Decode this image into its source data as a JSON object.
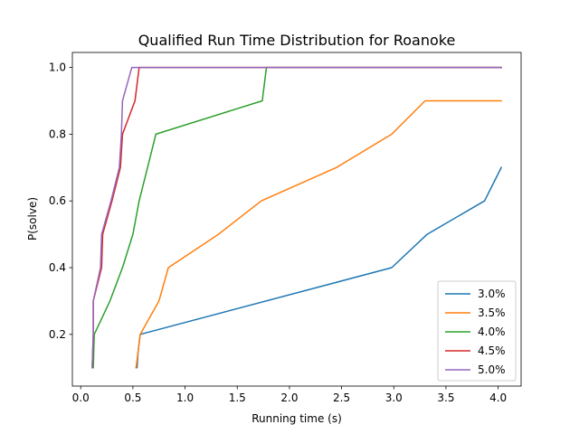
{
  "chart_data": {
    "type": "line",
    "title": "Qualified Run Time Distribution for Roanoke",
    "xlabel": "Running time (s)",
    "ylabel": "P(solve)",
    "xlim": [
      -0.08,
      4.22
    ],
    "ylim": [
      0.045,
      1.045
    ],
    "xticks": [
      0.0,
      0.5,
      1.0,
      1.5,
      2.0,
      2.5,
      3.0,
      3.5,
      4.0
    ],
    "xtick_labels": [
      "0.0",
      "0.5",
      "1.0",
      "1.5",
      "2.0",
      "2.5",
      "3.0",
      "3.5",
      "4.0"
    ],
    "yticks": [
      0.2,
      0.4,
      0.6,
      0.8,
      1.0
    ],
    "ytick_labels": [
      "0.2",
      "0.4",
      "0.6",
      "0.8",
      "1.0"
    ],
    "grid": false,
    "legend_position": "lower-right",
    "series": [
      {
        "name": "3.0%",
        "color": "#1f77b4",
        "points": [
          [
            0.53,
            0.1
          ],
          [
            0.54,
            0.1
          ],
          [
            0.55,
            0.15
          ],
          [
            0.57,
            0.2
          ],
          [
            2.98,
            0.4
          ],
          [
            3.32,
            0.5
          ],
          [
            3.87,
            0.6
          ],
          [
            4.03,
            0.7
          ]
        ]
      },
      {
        "name": "3.5%",
        "color": "#ff7f0e",
        "points": [
          [
            0.53,
            0.1
          ],
          [
            0.57,
            0.2
          ],
          [
            0.75,
            0.3
          ],
          [
            0.84,
            0.4
          ],
          [
            1.32,
            0.5
          ],
          [
            1.73,
            0.6
          ],
          [
            2.45,
            0.7
          ],
          [
            2.98,
            0.8
          ],
          [
            3.3,
            0.9
          ],
          [
            4.03,
            0.9
          ]
        ]
      },
      {
        "name": "4.0%",
        "color": "#2ca02c",
        "points": [
          [
            0.12,
            0.1
          ],
          [
            0.13,
            0.2
          ],
          [
            0.28,
            0.3
          ],
          [
            0.4,
            0.4
          ],
          [
            0.5,
            0.5
          ],
          [
            0.56,
            0.6
          ],
          [
            0.64,
            0.7
          ],
          [
            0.72,
            0.8
          ],
          [
            1.74,
            0.9
          ],
          [
            1.78,
            1.0
          ],
          [
            4.03,
            1.0
          ]
        ]
      },
      {
        "name": "4.5%",
        "color": "#d62728",
        "points": [
          [
            0.11,
            0.1
          ],
          [
            0.12,
            0.2
          ],
          [
            0.12,
            0.3
          ],
          [
            0.2,
            0.4
          ],
          [
            0.21,
            0.5
          ],
          [
            0.3,
            0.6
          ],
          [
            0.38,
            0.7
          ],
          [
            0.4,
            0.8
          ],
          [
            0.52,
            0.9
          ],
          [
            0.56,
            1.0
          ],
          [
            4.03,
            1.0
          ]
        ]
      },
      {
        "name": "5.0%",
        "color": "#9467bd",
        "points": [
          [
            0.11,
            0.1
          ],
          [
            0.12,
            0.2
          ],
          [
            0.12,
            0.3
          ],
          [
            0.19,
            0.4
          ],
          [
            0.2,
            0.5
          ],
          [
            0.29,
            0.6
          ],
          [
            0.37,
            0.7
          ],
          [
            0.39,
            0.8
          ],
          [
            0.4,
            0.9
          ],
          [
            0.49,
            1.0
          ],
          [
            4.03,
            1.0
          ]
        ]
      }
    ]
  }
}
